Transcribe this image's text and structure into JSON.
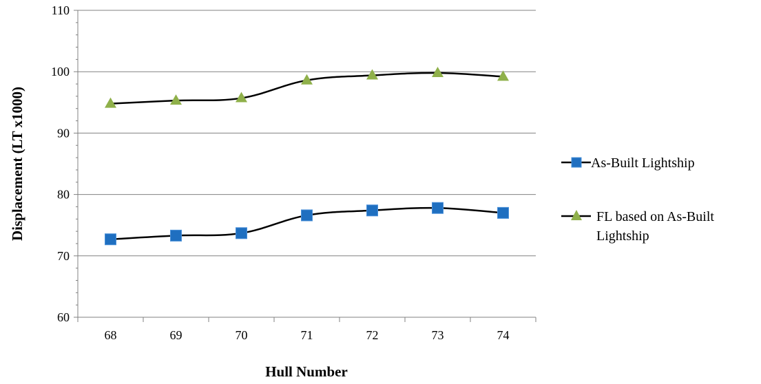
{
  "chart_data": {
    "type": "line",
    "title": "",
    "xlabel": "Hull Number",
    "ylabel": "Displacement (LT x1000)",
    "categories": [
      "68",
      "69",
      "70",
      "71",
      "72",
      "73",
      "74"
    ],
    "ylim": [
      60,
      110
    ],
    "yticks": [
      "60",
      "70",
      "80",
      "90",
      "100",
      "110"
    ],
    "grid": "horizontal major",
    "legend_position": "right",
    "series": [
      {
        "name": "As-Built Lightship",
        "marker": "square",
        "color": "#1f6fc0",
        "values": [
          72.7,
          73.3,
          73.7,
          76.6,
          77.4,
          77.8,
          77.0
        ]
      },
      {
        "name_lines": [
          "FL based on As-Built",
          "Lightship"
        ],
        "marker": "triangle",
        "color": "#8fb04a",
        "values": [
          94.8,
          95.3,
          95.7,
          98.6,
          99.4,
          99.8,
          99.2
        ]
      }
    ],
    "line_color": "#000000"
  }
}
